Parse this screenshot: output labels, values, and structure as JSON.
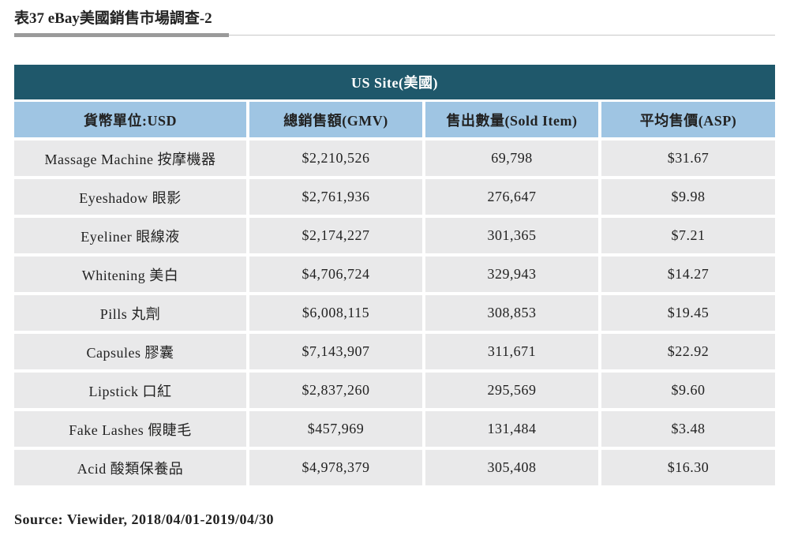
{
  "title": "表37 eBay美國銷售市場調查-2",
  "table": {
    "caption": "US Site(美國)",
    "headers": [
      "貨幣單位:USD",
      "總銷售額(GMV)",
      "售出數量(Sold Item)",
      "平均售價(ASP)"
    ],
    "rows": [
      [
        "Massage Machine 按摩機器",
        "$2,210,526",
        "69,798",
        "$31.67"
      ],
      [
        "Eyeshadow 眼影",
        "$2,761,936",
        "276,647",
        "$9.98"
      ],
      [
        "Eyeliner 眼線液",
        "$2,174,227",
        "301,365",
        "$7.21"
      ],
      [
        "Whitening 美白",
        "$4,706,724",
        "329,943",
        "$14.27"
      ],
      [
        "Pills 丸劑",
        "$6,008,115",
        "308,853",
        "$19.45"
      ],
      [
        "Capsules 膠囊",
        "$7,143,907",
        "311,671",
        "$22.92"
      ],
      [
        "Lipstick 口紅",
        "$2,837,260",
        "295,569",
        "$9.60"
      ],
      [
        "Fake Lashes 假睫毛",
        "$457,969",
        "131,484",
        "$3.48"
      ],
      [
        "Acid 酸類保養品",
        "$4,978,379",
        "305,408",
        "$16.30"
      ]
    ]
  },
  "source": "Source: Viewider, 2018/04/01-2019/04/30"
}
